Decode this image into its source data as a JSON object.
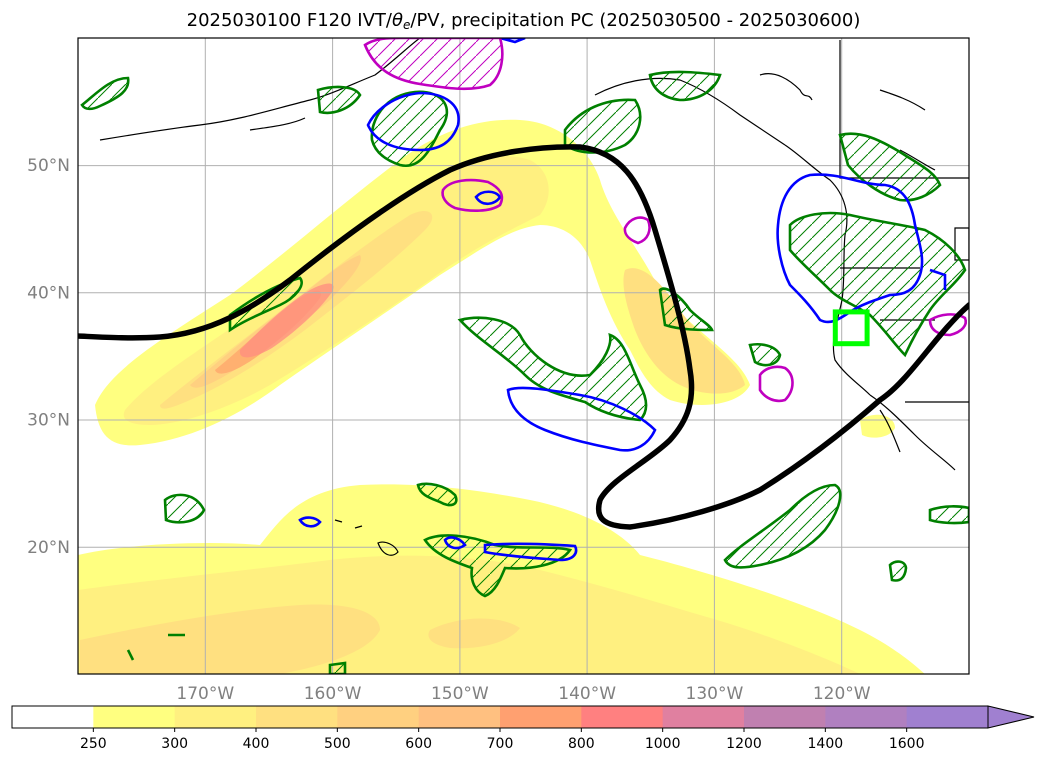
{
  "title": {
    "prefix": "2025030100 F120 IVT/",
    "theta": "θ",
    "theta_sub": "e",
    "suffix": "/PV, precipitation PC (2025030500 - 2025030600)"
  },
  "map": {
    "lon_range": [
      -180,
      -110
    ],
    "lat_range": [
      10,
      60
    ],
    "lon_ticks": [
      {
        "lon": -170,
        "label": "170°W"
      },
      {
        "lon": -160,
        "label": "160°W"
      },
      {
        "lon": -150,
        "label": "150°W"
      },
      {
        "lon": -140,
        "label": "140°W"
      },
      {
        "lon": -130,
        "label": "130°W"
      },
      {
        "lon": -120,
        "label": "120°W"
      }
    ],
    "lat_ticks": [
      {
        "lat": 20,
        "label": "20°N"
      },
      {
        "lat": 30,
        "label": "30°N"
      },
      {
        "lat": 40,
        "label": "40°N"
      },
      {
        "lat": 50,
        "label": "50°N"
      }
    ],
    "grid": true,
    "colors": {
      "coastline": "#000000",
      "pv_contour": "#000000",
      "green_contour": "#008000",
      "blue_contour": "#0000ff",
      "magenta_contour": "#c000c0",
      "target_box": "#00ff00",
      "gridline": "#b0b0b0"
    },
    "target_box": {
      "lon": [
        -120.5,
        -118
      ],
      "lat": [
        36,
        38.5
      ]
    }
  },
  "colorbar": {
    "levels": [
      "250",
      "300",
      "400",
      "500",
      "600",
      "700",
      "800",
      "1000",
      "1200",
      "1400",
      "1600"
    ],
    "colors": [
      "#ffffff",
      "#ffff80",
      "#fff080",
      "#ffe080",
      "#ffd080",
      "#ffc080",
      "#ffa070",
      "#ff8080",
      "#e080a0",
      "#c080b0",
      "#b080c0",
      "#a080d0"
    ],
    "extend": "max"
  }
}
